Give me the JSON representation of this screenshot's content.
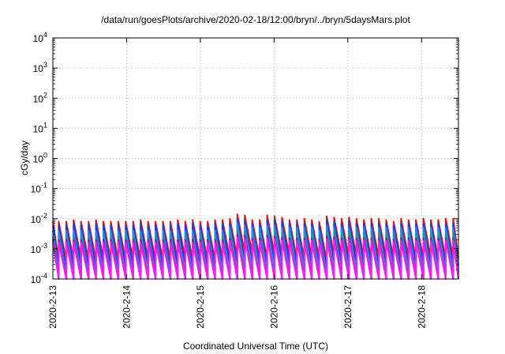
{
  "chart_data": {
    "type": "line",
    "title": "/data/run/goesPlots/archive/2020-02-18/12:00/bryn/../bryn/5daysMars.plot",
    "xlabel": "Coordinated Universal Time (UTC)",
    "ylabel": "cGy/day",
    "yscale": "log",
    "ylim": [
      0.0001,
      10000
    ],
    "xlim": [
      "2020-02-13 00:00",
      "2020-02-18 12:00"
    ],
    "y_ticks": [
      {
        "base": "10",
        "exp": "4"
      },
      {
        "base": "10",
        "exp": "3"
      },
      {
        "base": "10",
        "exp": "2"
      },
      {
        "base": "10",
        "exp": "1"
      },
      {
        "base": "10",
        "exp": "0"
      },
      {
        "base": "10",
        "exp": "-1"
      },
      {
        "base": "10",
        "exp": "-2"
      },
      {
        "base": "10",
        "exp": "-3"
      },
      {
        "base": "10",
        "exp": "-4"
      }
    ],
    "x_ticks": [
      "2020-2-13",
      "2020-2-14",
      "2020-2-15",
      "2020-2-16",
      "2020-2-17",
      "2020-2-18"
    ],
    "grid": true,
    "series": [
      {
        "color": "#e8100f",
        "amplitude_decades": 1.3,
        "peaks_1e3": [
          8,
          8,
          8,
          9,
          8,
          8,
          9,
          8,
          8,
          8,
          8,
          8,
          9,
          8,
          8,
          8,
          8,
          9,
          8,
          9,
          8,
          8,
          9,
          9,
          10,
          14,
          13,
          9,
          9,
          13,
          12,
          11,
          9,
          9,
          10,
          9,
          8,
          12,
          11,
          10,
          11,
          10,
          9,
          10,
          10,
          9,
          8,
          10,
          9,
          9,
          10,
          9,
          9,
          10,
          10
        ]
      },
      {
        "color": "#1a3ce0",
        "amplitude_decades": 1.4,
        "peaks_1e3": [
          6,
          6,
          6,
          7,
          6,
          6,
          7,
          6,
          6,
          6,
          6,
          6,
          7,
          6,
          6,
          6,
          6,
          7,
          6,
          7,
          6,
          6,
          7,
          7,
          7,
          10,
          9,
          7,
          7,
          9,
          9,
          8,
          7,
          7,
          7,
          7,
          6,
          9,
          8,
          7,
          8,
          7,
          7,
          7,
          7,
          7,
          6,
          7,
          7,
          7,
          7,
          7,
          7,
          7,
          7
        ]
      },
      {
        "color": "#1d8cf0",
        "amplitude_decades": 1.5,
        "peaks_1e3": [
          4,
          4,
          4,
          4,
          4,
          4,
          4,
          4,
          4,
          4,
          4,
          4,
          4,
          4,
          4,
          4,
          4,
          4,
          4,
          4,
          4,
          4,
          4,
          4,
          5,
          7,
          6,
          5,
          5,
          6,
          6,
          5,
          5,
          5,
          5,
          5,
          4,
          6,
          5,
          5,
          5,
          5,
          5,
          5,
          5,
          5,
          4,
          5,
          5,
          5,
          5,
          5,
          5,
          5,
          5
        ]
      },
      {
        "color": "#1aa37a",
        "amplitude_decades": 1.5,
        "peaks_1e3": [
          2.5,
          2.5,
          2.5,
          2.5,
          2.5,
          2.5,
          2.5,
          2.5,
          2.5,
          2.5,
          2.5,
          2.5,
          2.5,
          2.5,
          2.5,
          2.5,
          2.5,
          2.5,
          2.5,
          2.5,
          2.5,
          2.5,
          2.5,
          2.5,
          3,
          4,
          3.5,
          3,
          3,
          3.5,
          3.5,
          3,
          3,
          3,
          3,
          3,
          2.5,
          3.5,
          3,
          3,
          3,
          3,
          3,
          3,
          3,
          3,
          2.5,
          3,
          3,
          3,
          3,
          3,
          3,
          3,
          3
        ]
      },
      {
        "color": "#b300b3",
        "amplitude_decades": 1.6,
        "peaks_1e3": [
          2,
          2,
          2,
          2,
          2,
          2,
          2,
          2,
          2,
          2,
          2,
          2,
          2,
          2,
          2,
          2,
          2,
          2,
          2,
          2,
          2,
          2,
          2,
          2,
          2.2,
          3,
          2.8,
          2.2,
          2.2,
          2.8,
          2.6,
          2.4,
          2.2,
          2.2,
          2.2,
          2.2,
          2,
          2.6,
          2.4,
          2.2,
          2.4,
          2.2,
          2.2,
          2.2,
          2.2,
          2.2,
          2,
          2.2,
          2.2,
          2.2,
          2.2,
          2.2,
          2.2,
          2.2,
          2.2
        ]
      },
      {
        "color": "#ff1aff",
        "amplitude_decades": 1.7,
        "peaks_1e3": [
          1.6,
          1.6,
          1.6,
          1.6,
          1.6,
          1.6,
          1.6,
          1.6,
          1.6,
          1.6,
          1.6,
          1.6,
          1.6,
          1.6,
          1.6,
          1.6,
          1.6,
          1.6,
          1.6,
          1.6,
          1.6,
          1.6,
          1.6,
          1.6,
          1.8,
          2.4,
          2.2,
          1.8,
          1.8,
          2.2,
          2.1,
          1.9,
          1.8,
          1.8,
          1.8,
          1.8,
          1.6,
          2.1,
          1.9,
          1.8,
          1.9,
          1.8,
          1.8,
          1.8,
          1.8,
          1.8,
          1.6,
          1.8,
          1.8,
          1.8,
          1.8,
          1.8,
          1.8,
          1.8,
          1.8
        ]
      }
    ]
  }
}
